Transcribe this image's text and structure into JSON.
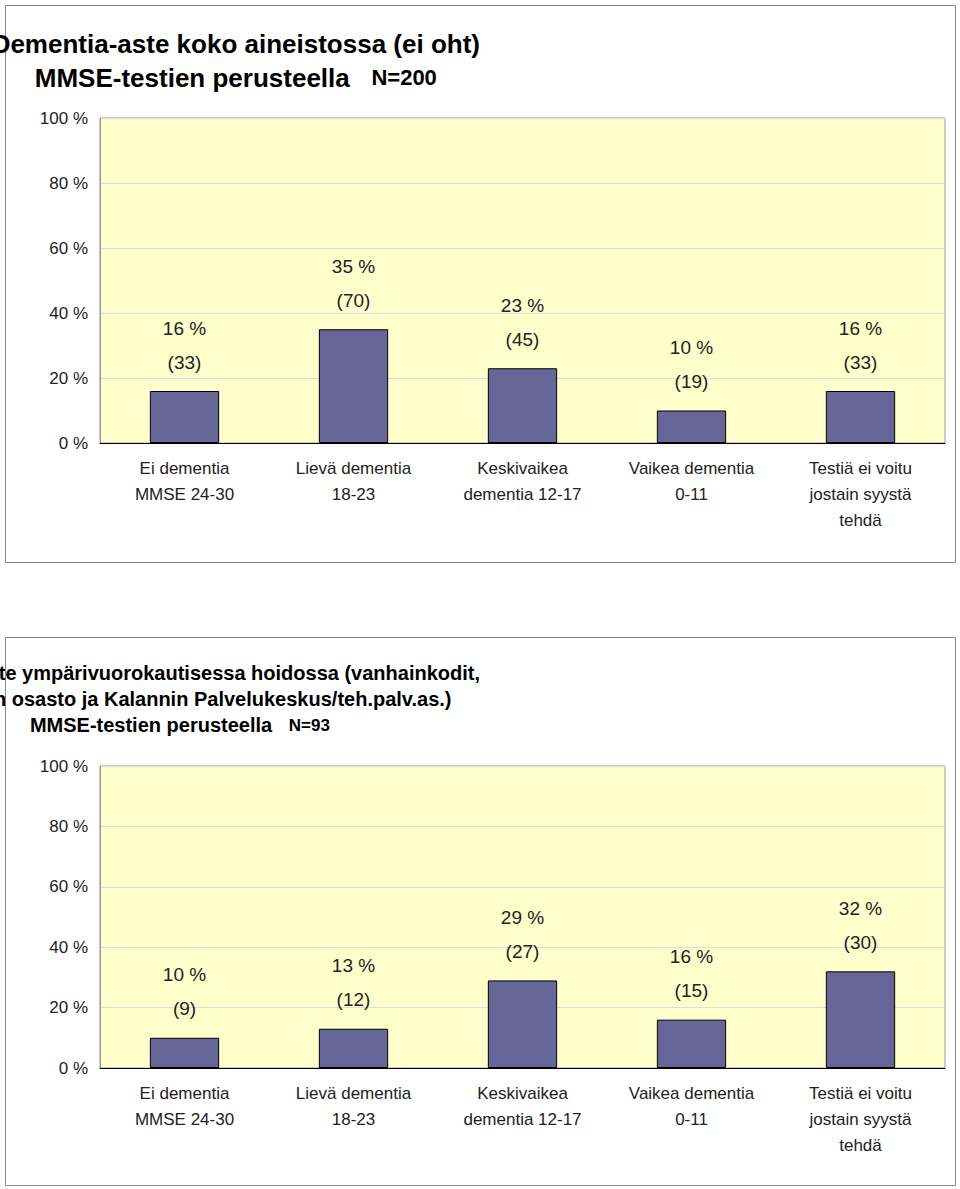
{
  "chart_data": [
    {
      "type": "bar",
      "title": "Dementia-aste koko aineistossa (ei oht)\nMMSE-testien perusteella",
      "subtitle": "N=200",
      "categories": [
        "Ei dementia\nMMSE 24-30",
        "Lievä dementia\n18-23",
        "Keskivaikea\ndementia 12-17",
        "Vaikea dementia\n0-11",
        "Testiä ei voitu\njostain syystä\ntehdä"
      ],
      "values": [
        16,
        35,
        23,
        10,
        16
      ],
      "value_labels": [
        "16 %\n(33)",
        "35 %\n(70)",
        "23 %\n(45)",
        "10 %\n(19)",
        "16 %\n(33)"
      ],
      "color": "#666699",
      "ylim": [
        0,
        100
      ],
      "yticks": [
        {
          "value": 0,
          "label": "0 %"
        },
        {
          "value": 20,
          "label": "20 %"
        },
        {
          "value": 40,
          "label": "40 %"
        },
        {
          "value": 60,
          "label": "60 %"
        },
        {
          "value": 80,
          "label": "80 %"
        },
        {
          "value": 100,
          "label": "100 %"
        }
      ],
      "grid": true,
      "data_labels": true
    },
    {
      "type": "bar",
      "title": "Dementia-aste ympärivuorokautisessa hoidossa (vanhainkodit,\nMatleenan osasto ja Kalannin Palvelukeskus/teh.palv.as.)\nMMSE-testien perusteella",
      "subtitle": "N=93",
      "categories": [
        "Ei dementia\nMMSE 24-30",
        "Lievä dementia\n18-23",
        "Keskivaikea\ndementia 12-17",
        "Vaikea dementia\n0-11",
        "Testiä ei voitu\njostain syystä\ntehdä"
      ],
      "values": [
        10,
        13,
        29,
        16,
        32
      ],
      "value_labels": [
        "10 %\n(9)",
        "13 %\n(12)",
        "29 %\n(27)",
        "16 %\n(15)",
        "32 %\n(30)"
      ],
      "color": "#666699",
      "ylim": [
        0,
        100
      ],
      "yticks": [
        {
          "value": 0,
          "label": "0 %"
        },
        {
          "value": 20,
          "label": "20 %"
        },
        {
          "value": 40,
          "label": "40 %"
        },
        {
          "value": 60,
          "label": "60 %"
        },
        {
          "value": 80,
          "label": "80 %"
        },
        {
          "value": 100,
          "label": "100 %"
        }
      ],
      "grid": true,
      "data_labels": true
    }
  ]
}
